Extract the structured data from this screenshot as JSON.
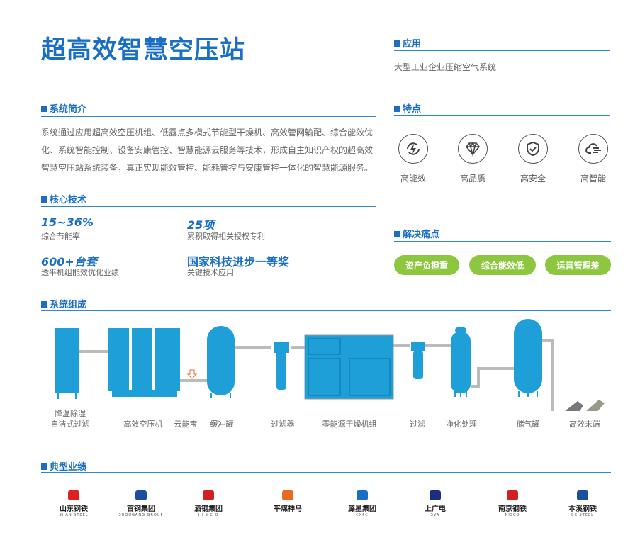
{
  "title": "超高效智慧空压站",
  "application": {
    "heading": "应用",
    "text": "大型工业企业压缩空气系统"
  },
  "intro": {
    "heading": "系统简介",
    "lines": [
      "系统通过应用超高效空压机组、低露点多模式节能型干燥机、高效管网输配、综合能效优",
      "化、系统智能控制、设备安康管控、智慧能源云服务等技术，形成自主知识产权的超高效",
      "智慧空压站系统装备，真正实现能效管控、能耗管控与安康管控一体化的智慧能源服务。"
    ]
  },
  "features": {
    "heading": "特点",
    "items": [
      {
        "label": "高能效",
        "icon": "lightning-cycle-icon"
      },
      {
        "label": "高品质",
        "icon": "diamond-icon"
      },
      {
        "label": "高安全",
        "icon": "shield-check-icon"
      },
      {
        "label": "高智能",
        "icon": "cloud-icon"
      }
    ]
  },
  "core": {
    "heading": "核心技术",
    "stats": [
      {
        "value": "15~36%",
        "label": "综合节能率"
      },
      {
        "value": "25项",
        "label": "累积取得相关授权专利"
      },
      {
        "value": "600+台套",
        "label": "透平机组能效优化业绩"
      },
      {
        "value": "国家科技进步一等奖",
        "label": "关键技术应用"
      }
    ]
  },
  "pain": {
    "heading": "解决痛点",
    "items": [
      "资产负担重",
      "综合能效低",
      "运营管理差"
    ],
    "color": "#8dc63f"
  },
  "system": {
    "heading": "系统组成",
    "labels": [
      "降温除湿",
      "自洁式过滤",
      "高效空压机",
      "云能宝",
      "缓冲罐",
      "过滤器",
      "零能源干燥机组",
      "过滤",
      "净化处理",
      "储气罐",
      "高效末端"
    ],
    "equipment_color": "#1e9fd8"
  },
  "cases": {
    "heading": "典型业绩",
    "logos": [
      {
        "name": "山东钢铁",
        "sub": "SHAN STEEL",
        "color": "#e02020"
      },
      {
        "name": "首钢集团",
        "sub": "SHOUGANG GROUP",
        "color": "#1a4fa0"
      },
      {
        "name": "酒钢集团",
        "sub": "J I S C O",
        "color": "#d02020"
      },
      {
        "name": "平煤神马",
        "sub": "",
        "color": "#e86a20"
      },
      {
        "name": "潞星集团",
        "sub": "CXPC",
        "color": "#1a6fc4"
      },
      {
        "name": "上广电",
        "sub": "SVA",
        "color": "#1a2f80"
      },
      {
        "name": "南京钢铁",
        "sub": "NISCO",
        "color": "#d02020"
      },
      {
        "name": "本溪钢铁",
        "sub": "BX STEEL",
        "color": "#1a4fa0"
      }
    ]
  },
  "accent": "#1a6fc4"
}
